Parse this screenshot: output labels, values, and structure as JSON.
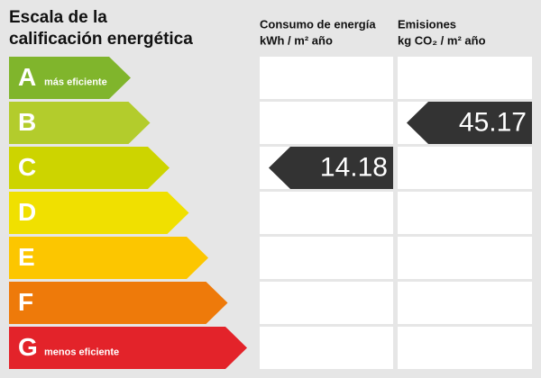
{
  "header": {
    "title_lines": [
      "Escala de la",
      "calificación energética"
    ]
  },
  "columns": {
    "consumption": [
      "Consumo de energía",
      "kWh / m² año"
    ],
    "emissions": [
      "Emisiones",
      "kg CO₂ / m² año"
    ]
  },
  "rows": [
    {
      "letter": "A",
      "note": "más eficiente",
      "color": "#80b52c",
      "consumption": null,
      "emissions": null
    },
    {
      "letter": "B",
      "color": "#b3cc2c",
      "consumption": null,
      "emissions": "45.17"
    },
    {
      "letter": "C",
      "color": "#cdd400",
      "consumption": "14.18",
      "emissions": null
    },
    {
      "letter": "D",
      "color": "#f0e000",
      "consumption": null,
      "emissions": null
    },
    {
      "letter": "E",
      "color": "#fcc600",
      "consumption": null,
      "emissions": null
    },
    {
      "letter": "F",
      "color": "#ee7a0a",
      "consumption": null,
      "emissions": null
    },
    {
      "letter": "G",
      "note": "menos eficiente",
      "color": "#e3232a",
      "consumption": null,
      "emissions": null
    }
  ]
}
